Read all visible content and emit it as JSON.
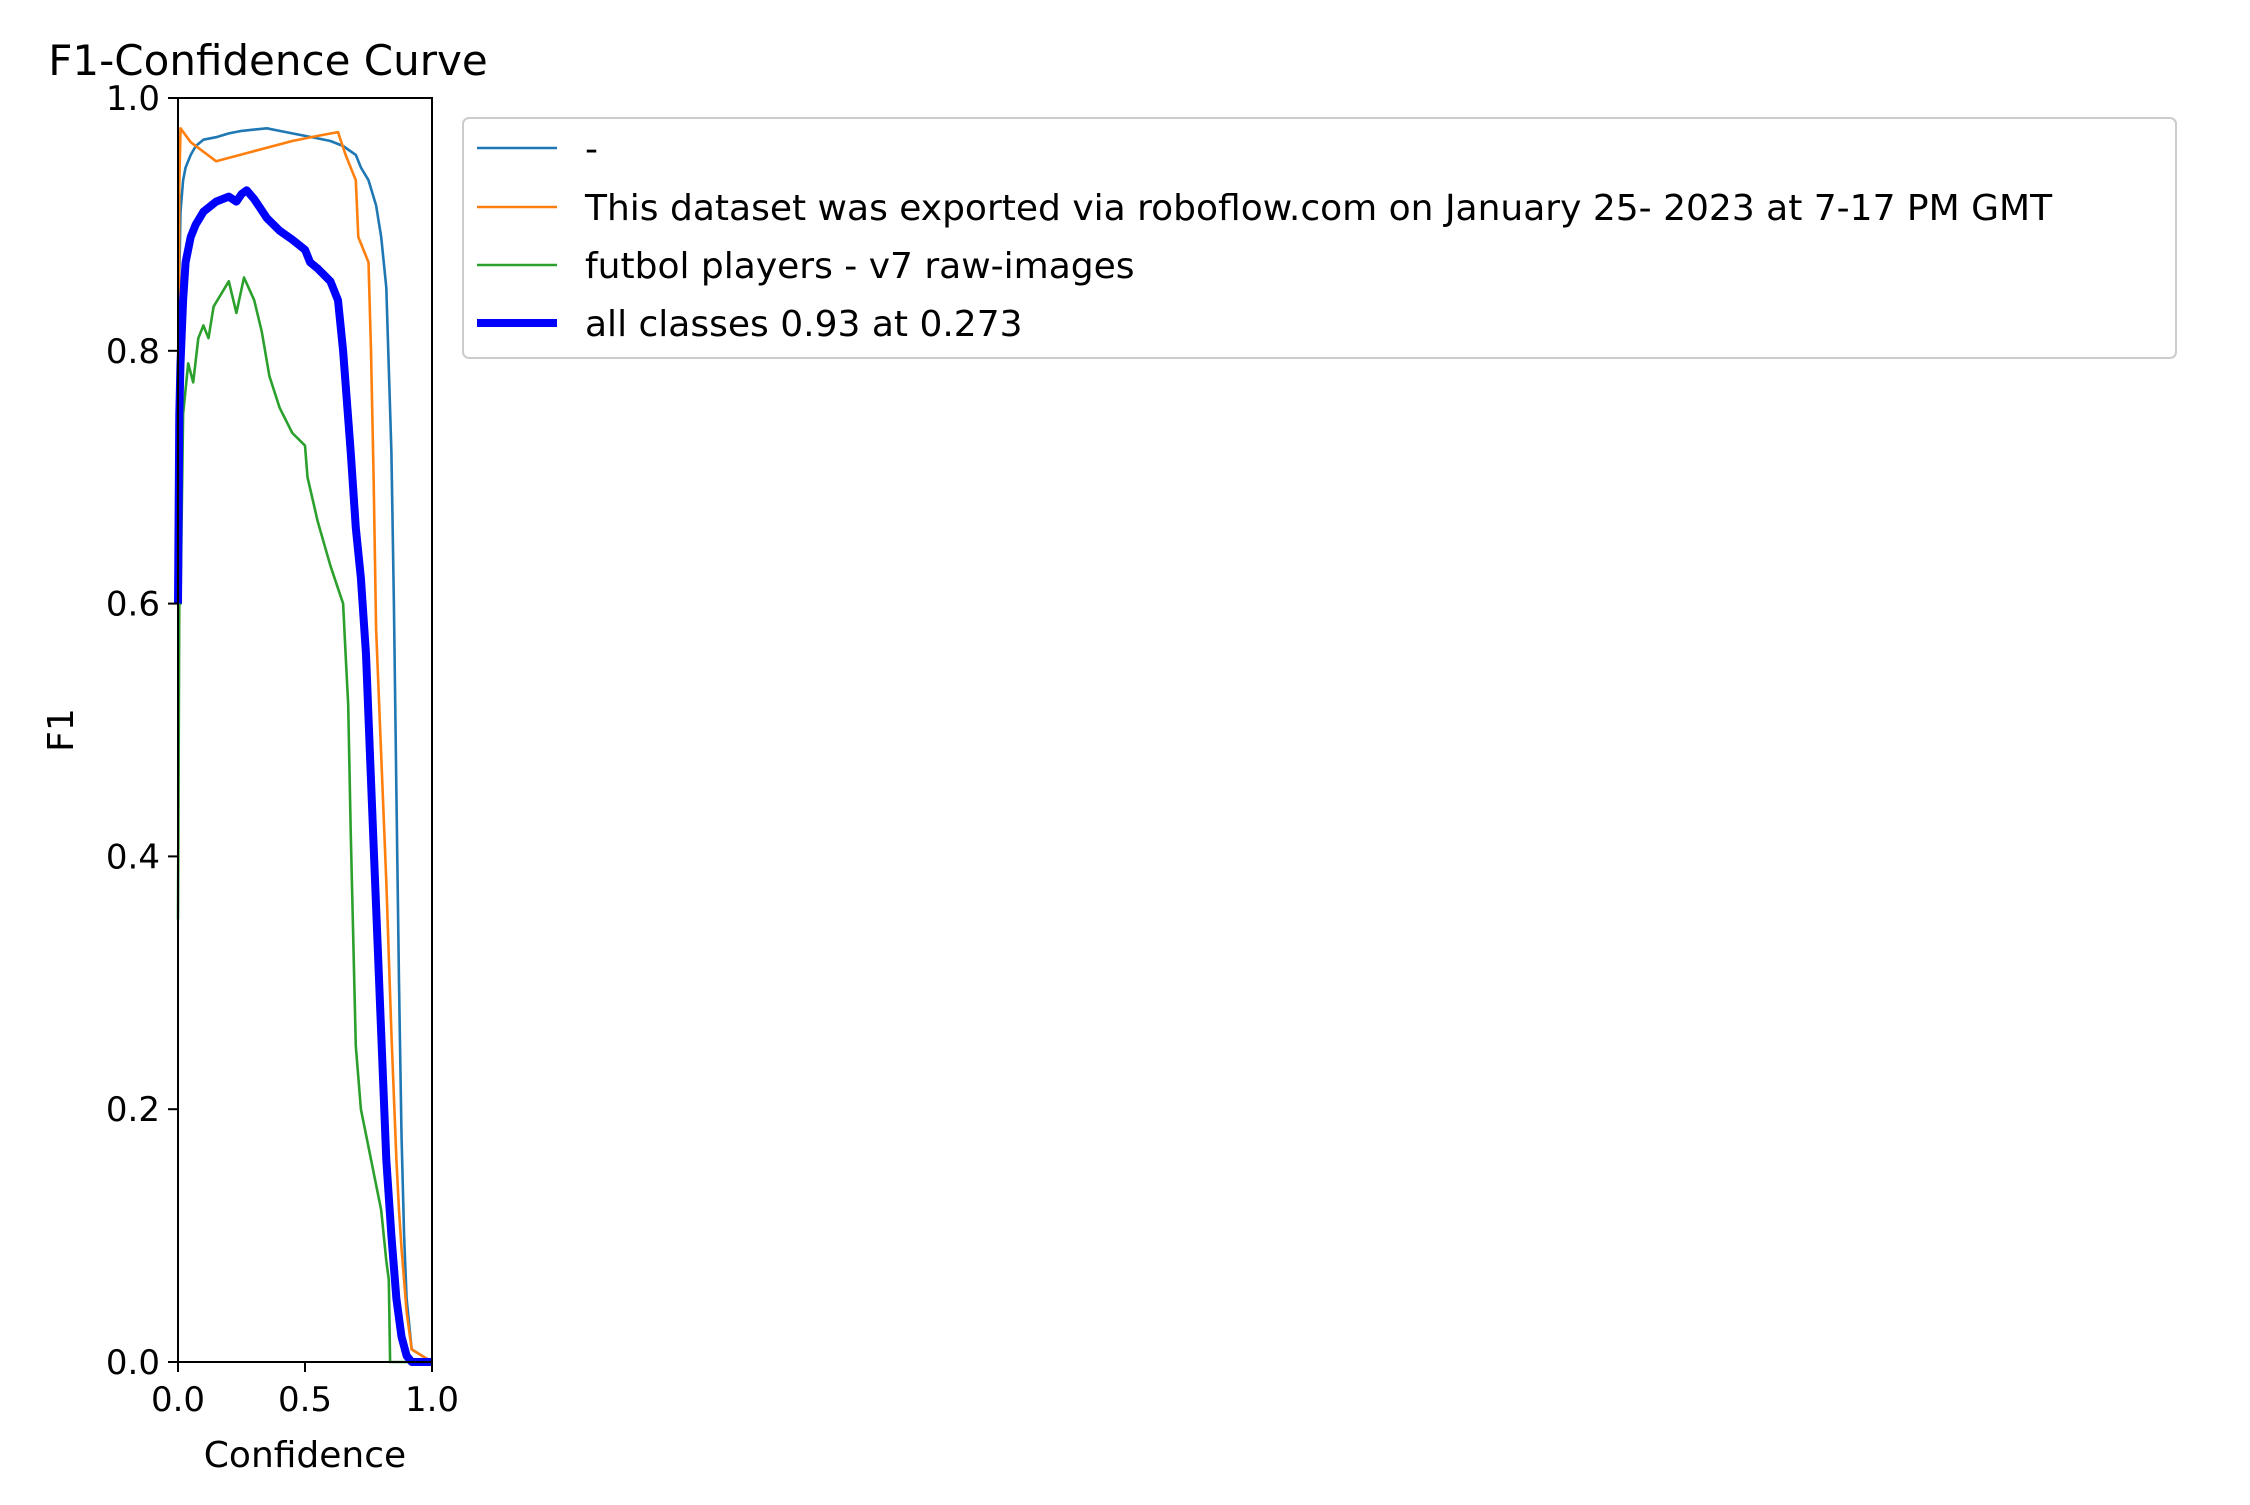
{
  "chart_data": {
    "type": "line",
    "title": "F1-Confidence Curve",
    "xlabel": "Confidence",
    "ylabel": "F1",
    "xlim": [
      0,
      1
    ],
    "ylim": [
      0,
      1
    ],
    "grid": false,
    "legend_position": "outside-right",
    "xticks": [
      "0.0",
      "0.5",
      "1.0"
    ],
    "yticks": [
      "0.0",
      "0.2",
      "0.4",
      "0.6",
      "0.8",
      "1.0"
    ],
    "series": [
      {
        "name": "-",
        "color": "#1f77b4",
        "width": "thin",
        "x": [
          0,
          0.005,
          0.01,
          0.02,
          0.03,
          0.05,
          0.07,
          0.1,
          0.15,
          0.2,
          0.25,
          0.3,
          0.35,
          0.4,
          0.45,
          0.5,
          0.55,
          0.6,
          0.65,
          0.7,
          0.72,
          0.75,
          0.78,
          0.8,
          0.82,
          0.84,
          0.85,
          0.86,
          0.87,
          0.88,
          0.89,
          0.9,
          0.92,
          1.0
        ],
        "y": [
          0.6,
          0.86,
          0.91,
          0.935,
          0.945,
          0.955,
          0.962,
          0.967,
          0.969,
          0.972,
          0.974,
          0.975,
          0.976,
          0.974,
          0.972,
          0.97,
          0.968,
          0.966,
          0.962,
          0.955,
          0.945,
          0.935,
          0.915,
          0.89,
          0.85,
          0.72,
          0.6,
          0.45,
          0.3,
          0.18,
          0.1,
          0.05,
          0.01,
          0.0
        ]
      },
      {
        "name": "This dataset was exported via roboflow.com on January 25- 2023 at 7-17 PM GMT",
        "color": "#ff7f0e",
        "width": "thin",
        "x": [
          0,
          0.005,
          0.01,
          0.05,
          0.15,
          0.3,
          0.45,
          0.55,
          0.63,
          0.66,
          0.7,
          0.71,
          0.75,
          0.76,
          0.77,
          0.78,
          0.8,
          0.82,
          0.84,
          0.86,
          0.87,
          0.88,
          0.9,
          0.92,
          1.0
        ],
        "y": [
          0.6,
          0.93,
          0.976,
          0.965,
          0.95,
          0.958,
          0.966,
          0.97,
          0.973,
          0.955,
          0.935,
          0.89,
          0.87,
          0.8,
          0.7,
          0.58,
          0.48,
          0.38,
          0.26,
          0.16,
          0.12,
          0.09,
          0.04,
          0.01,
          0.0
        ]
      },
      {
        "name": "futbol players - v7 raw-images",
        "color": "#2ca02c",
        "width": "thin",
        "x": [
          0,
          0.005,
          0.01,
          0.02,
          0.04,
          0.06,
          0.08,
          0.1,
          0.12,
          0.14,
          0.17,
          0.2,
          0.23,
          0.26,
          0.3,
          0.33,
          0.36,
          0.4,
          0.45,
          0.5,
          0.51,
          0.55,
          0.6,
          0.65,
          0.66,
          0.67,
          0.68,
          0.7,
          0.72,
          0.74,
          0.77,
          0.8,
          0.82,
          0.83,
          0.835,
          0.84,
          1.0
        ],
        "y": [
          0.35,
          0.6,
          0.6,
          0.75,
          0.79,
          0.775,
          0.81,
          0.82,
          0.81,
          0.835,
          0.845,
          0.855,
          0.83,
          0.858,
          0.84,
          0.815,
          0.78,
          0.755,
          0.735,
          0.725,
          0.7,
          0.665,
          0.63,
          0.6,
          0.56,
          0.52,
          0.42,
          0.25,
          0.2,
          0.18,
          0.15,
          0.12,
          0.08,
          0.065,
          0.0,
          0.0,
          0.0
        ]
      },
      {
        "name": "all classes 0.93 at 0.273",
        "color": "#0000ff",
        "width": "thick",
        "x": [
          0,
          0.005,
          0.01,
          0.02,
          0.03,
          0.05,
          0.07,
          0.1,
          0.15,
          0.2,
          0.23,
          0.25,
          0.27,
          0.3,
          0.35,
          0.4,
          0.45,
          0.5,
          0.52,
          0.55,
          0.6,
          0.63,
          0.65,
          0.68,
          0.7,
          0.72,
          0.74,
          0.76,
          0.78,
          0.8,
          0.82,
          0.84,
          0.86,
          0.88,
          0.9,
          0.92,
          0.94,
          1.0
        ],
        "y": [
          0.6,
          0.75,
          0.79,
          0.84,
          0.87,
          0.89,
          0.9,
          0.91,
          0.918,
          0.922,
          0.918,
          0.924,
          0.927,
          0.92,
          0.905,
          0.895,
          0.888,
          0.88,
          0.87,
          0.865,
          0.855,
          0.84,
          0.8,
          0.72,
          0.66,
          0.62,
          0.56,
          0.46,
          0.36,
          0.26,
          0.16,
          0.1,
          0.05,
          0.02,
          0.005,
          0.0,
          0.0,
          0.0
        ]
      }
    ]
  }
}
